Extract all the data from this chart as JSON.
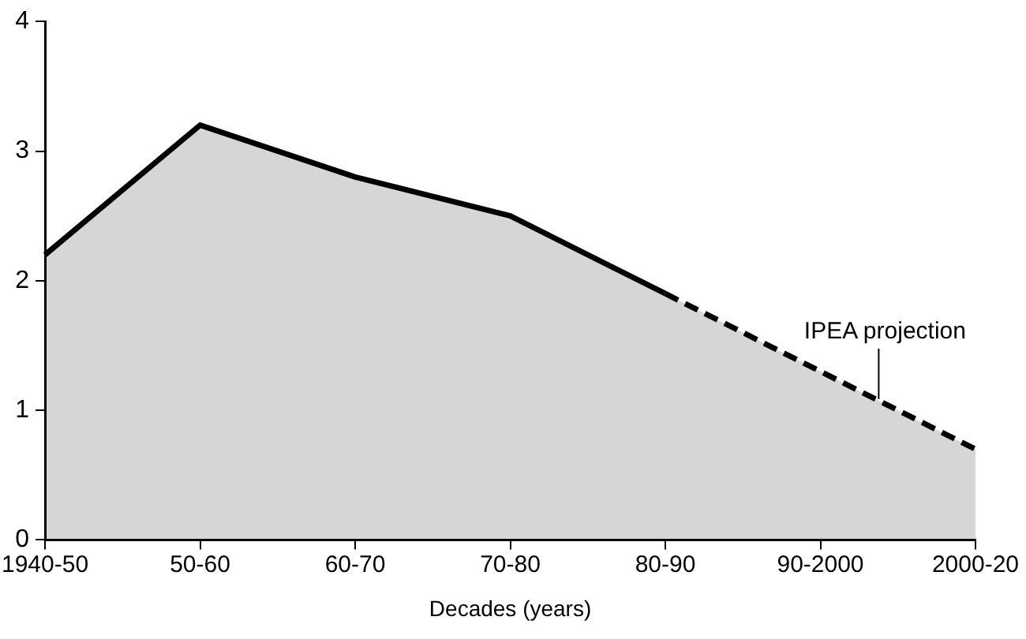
{
  "chart_data": {
    "type": "area",
    "xlabel": "Decades (years)",
    "categories": [
      "1940-50",
      "50-60",
      "60-70",
      "70-80",
      "80-90",
      "90-2000",
      "2000-20"
    ],
    "series": [
      {
        "color": "#000000",
        "line_style": "solid",
        "values": [
          2.2,
          3.2,
          2.8,
          2.5,
          1.9,
          null,
          null
        ]
      },
      {
        "color": "#000000",
        "line_style": "dashed",
        "values": [
          null,
          null,
          null,
          null,
          1.9,
          1.3,
          0.7
        ]
      }
    ],
    "ylim": [
      0,
      4
    ],
    "yticks": [
      0,
      1,
      2,
      3,
      4
    ],
    "grid": false,
    "legend": false,
    "annotations": [
      {
        "text": "IPEA projection",
        "y": 1.05
      }
    ]
  }
}
